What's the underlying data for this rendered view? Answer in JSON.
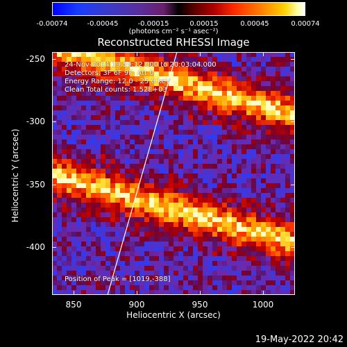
{
  "colorbar": {
    "ticks": [
      "-0.00074",
      "-0.00045",
      "-0.00015",
      "0.00015",
      "0.00045",
      "0.00074"
    ],
    "units": "(photons cm⁻² s⁻¹ asec⁻²)"
  },
  "title": "Reconstructed RHESSI Image",
  "annotations": {
    "time": "24-Nov-2014 19:59:12.000 to 20:03:04.000",
    "detectors": "Detectors: 3F 6F 9F, Att 0",
    "energy": "Energy Range: 12.0 - 25.0 keV",
    "method": "Clean     Total counts: 1.52E+03",
    "peak": "Position of Peak = [1019,-388]"
  },
  "axes": {
    "xlabel": "Heliocentric X (arcsec)",
    "ylabel": "Heliocentric Y (arcsec)",
    "xticks": [
      "850",
      "900",
      "950",
      "1000"
    ],
    "yticks": [
      "-250",
      "-300",
      "-350",
      "-400"
    ],
    "xlim": [
      833,
      1025
    ],
    "ylim": [
      -436,
      -243
    ]
  },
  "footer": "19-May-2022 20:42"
}
